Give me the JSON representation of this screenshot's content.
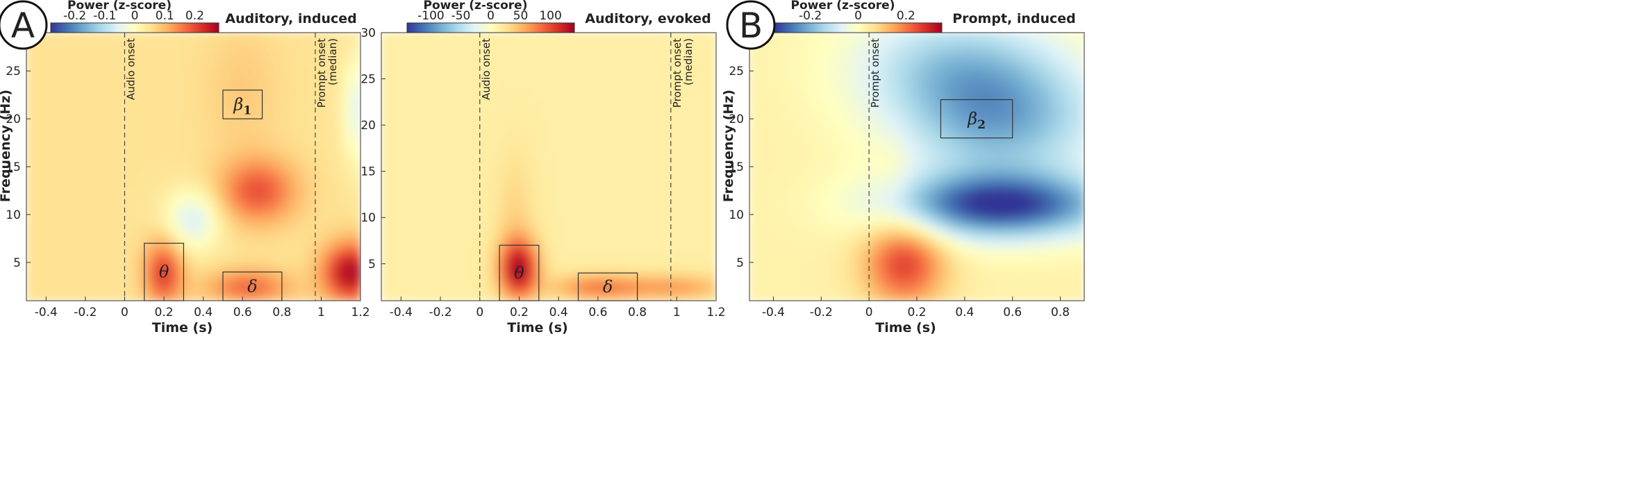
{
  "chart_data": [
    {
      "type": "heatmap",
      "panel_letter": "A",
      "title": "Auditory, induced",
      "xlabel": "Time (s)",
      "ylabel": "Frequency (Hz)",
      "xlim": [
        -0.5,
        1.2
      ],
      "ylim": [
        1,
        29
      ],
      "x_ticks": [
        -0.4,
        -0.2,
        0,
        0.2,
        0.4,
        0.6,
        0.8,
        1,
        1.2
      ],
      "y_ticks": [
        5,
        10,
        15,
        20,
        25
      ],
      "colorbar": {
        "label": "Power (z-score)",
        "range": [
          -0.28,
          0.28
        ],
        "ticks": [
          -0.2,
          -0.1,
          0,
          0.1,
          0.2
        ],
        "colormap": "RdYlBu_r"
      },
      "vlines": [
        {
          "x": 0,
          "label": "Audio onset"
        },
        {
          "x": 0.97,
          "label": "Prompt onset (median)"
        }
      ],
      "boxes": [
        {
          "label": "β",
          "sub": "1",
          "x": [
            0.5,
            0.7
          ],
          "y": [
            20,
            23
          ]
        },
        {
          "label": "θ",
          "sub": "",
          "x": [
            0.1,
            0.3
          ],
          "y": [
            1,
            7
          ]
        },
        {
          "label": "δ",
          "sub": "",
          "x": [
            0.5,
            0.8
          ],
          "y": [
            1,
            4
          ]
        }
      ],
      "blobs": [
        {
          "x": 0.68,
          "y": 12.5,
          "value": 0.19
        },
        {
          "x": 0.2,
          "y": 4,
          "value": 0.21
        },
        {
          "x": 0.63,
          "y": 2.5,
          "value": 0.17
        },
        {
          "x": 1.15,
          "y": 4,
          "value": 0.27
        },
        {
          "x": 0.35,
          "y": 9.5,
          "value": -0.06
        },
        {
          "x": 1.18,
          "y": 21,
          "value": -0.04
        },
        {
          "x": 0.6,
          "y": 23,
          "value": 0.08
        }
      ],
      "baseline_value": 0.05
    },
    {
      "type": "heatmap",
      "panel_letter": "",
      "title": "Auditory, evoked",
      "xlabel": "Time (s)",
      "ylabel": "",
      "xlim": [
        -0.5,
        1.2
      ],
      "ylim": [
        1,
        30
      ],
      "x_ticks": [
        -0.4,
        -0.2,
        0,
        0.2,
        0.4,
        0.6,
        0.8,
        1,
        1.2
      ],
      "y_ticks": [
        5,
        10,
        15,
        20,
        25,
        30
      ],
      "colorbar": {
        "label": "Power (z-score)",
        "range": [
          -140,
          140
        ],
        "ticks": [
          -100,
          -50,
          0,
          50,
          100
        ],
        "colormap": "RdYlBu_r"
      },
      "vlines": [
        {
          "x": 0,
          "label": "Audio onset"
        },
        {
          "x": 0.97,
          "label": "Prompt onset (median)"
        }
      ],
      "boxes": [
        {
          "label": "θ",
          "sub": "",
          "x": [
            0.1,
            0.3
          ],
          "y": [
            1,
            7
          ]
        },
        {
          "label": "δ",
          "sub": "",
          "x": [
            0.5,
            0.8
          ],
          "y": [
            1,
            4
          ]
        }
      ],
      "blobs": [
        {
          "x": 0.2,
          "y": 4.5,
          "value": 130
        },
        {
          "x": 0.6,
          "y": 2.5,
          "value": 75
        },
        {
          "x": 1.0,
          "y": 2.5,
          "value": 60
        },
        {
          "x": 0.18,
          "y": 10,
          "value": 35
        }
      ],
      "baseline_value": 15
    },
    {
      "type": "heatmap",
      "panel_letter": "B",
      "title": "Prompt, induced",
      "xlabel": "Time (s)",
      "ylabel": "Frequency (Hz)",
      "xlim": [
        -0.5,
        0.9
      ],
      "ylim": [
        1,
        29
      ],
      "x_ticks": [
        -0.4,
        -0.2,
        0,
        0.2,
        0.4,
        0.6,
        0.8
      ],
      "y_ticks": [
        5,
        10,
        15,
        20,
        25
      ],
      "colorbar": {
        "label": "Power (z-score)",
        "range": [
          -0.35,
          0.35
        ],
        "ticks": [
          -0.2,
          0,
          0.2
        ],
        "colormap": "RdYlBu_r"
      },
      "vlines": [
        {
          "x": 0,
          "label": "Prompt onset"
        }
      ],
      "boxes": [
        {
          "label": "β",
          "sub": "2",
          "x": [
            0.3,
            0.6
          ],
          "y": [
            18,
            22
          ]
        }
      ],
      "blobs": [
        {
          "x": 0.55,
          "y": 11,
          "value": -0.34
        },
        {
          "x": 0.55,
          "y": 20,
          "value": -0.2
        },
        {
          "x": 0.35,
          "y": 26,
          "value": -0.12
        },
        {
          "x": 0.15,
          "y": 5,
          "value": 0.26
        },
        {
          "x": 0.1,
          "y": 14,
          "value": 0.06
        }
      ],
      "baseline_value": 0.03
    }
  ]
}
